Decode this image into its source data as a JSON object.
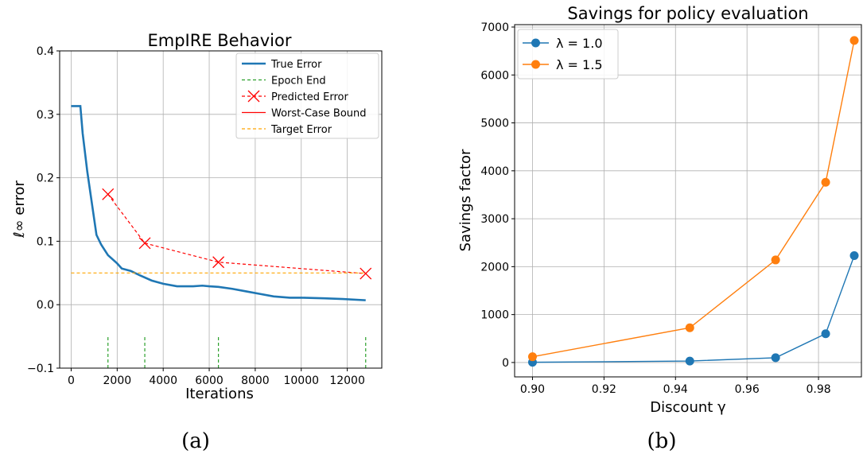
{
  "chart_data": [
    {
      "type": "line",
      "title": "EmpIRE Behavior",
      "xlabel": "Iterations",
      "ylabel": "ℓ∞ error",
      "xlim": [
        -500,
        13500
      ],
      "ylim": [
        -0.1,
        0.4
      ],
      "xticks": [
        0,
        2000,
        4000,
        6000,
        8000,
        10000,
        12000
      ],
      "yticks": [
        -0.1,
        0.0,
        0.1,
        0.2,
        0.3,
        0.4
      ],
      "xtick_labels": [
        "0",
        "2000",
        "4000",
        "6000",
        "8000",
        "10000",
        "12000"
      ],
      "ytick_labels": [
        "−0.1",
        "0.0",
        "0.1",
        "0.2",
        "0.3",
        "0.4"
      ],
      "grid": true,
      "legend_position": "top-right",
      "caption": "(a)",
      "legend": [
        "True Error",
        "Epoch End",
        "Predicted Error",
        "Worst-Case Bound",
        "Target Error"
      ],
      "series": [
        {
          "name": "True Error",
          "color": "#1f77b4",
          "style": "solid",
          "x": [
            0,
            400,
            500,
            700,
            900,
            1100,
            1300,
            1600,
            2000,
            2200,
            2600,
            3000,
            3500,
            4000,
            4600,
            5300,
            5700,
            6000,
            6400,
            7000,
            7600,
            8200,
            8800,
            9500,
            10000,
            11000,
            11800,
            12800
          ],
          "y": [
            0.313,
            0.313,
            0.27,
            0.21,
            0.16,
            0.11,
            0.095,
            0.078,
            0.065,
            0.057,
            0.053,
            0.046,
            0.038,
            0.033,
            0.029,
            0.029,
            0.03,
            0.029,
            0.028,
            0.025,
            0.021,
            0.017,
            0.013,
            0.011,
            0.011,
            0.01,
            0.009,
            0.007
          ]
        },
        {
          "name": "Epoch End",
          "color": "#2ca02c",
          "style": "dashed",
          "kind": "vlines",
          "x": [
            1600,
            3200,
            6400,
            12800
          ],
          "y_from": -0.1,
          "y_to": -0.05
        },
        {
          "name": "Predicted Error",
          "color": "#ff0000",
          "style": "dashed",
          "marker": "x",
          "x": [
            1600,
            3200,
            6400,
            12800
          ],
          "y": [
            0.174,
            0.097,
            0.067,
            0.049
          ]
        },
        {
          "name": "Worst-Case Bound",
          "color": "#ff0000",
          "style": "solid",
          "x": [],
          "y": []
        },
        {
          "name": "Target Error",
          "color": "#ffa500",
          "style": "dashed",
          "x": [
            0,
            12800
          ],
          "y": [
            0.05,
            0.05
          ]
        }
      ]
    },
    {
      "type": "line",
      "title": "Savings for policy evaluation",
      "xlabel": "Discount γ",
      "ylabel": "Savings factor",
      "xlim": [
        0.895,
        0.992
      ],
      "ylim": [
        -300,
        7050
      ],
      "xticks": [
        0.9,
        0.92,
        0.94,
        0.96,
        0.98
      ],
      "yticks": [
        0,
        1000,
        2000,
        3000,
        4000,
        5000,
        6000,
        7000
      ],
      "xtick_labels": [
        "0.90",
        "0.92",
        "0.94",
        "0.96",
        "0.98"
      ],
      "ytick_labels": [
        "0",
        "1000",
        "2000",
        "3000",
        "4000",
        "5000",
        "6000",
        "7000"
      ],
      "grid": true,
      "legend_position": "top-left",
      "caption": "(b)",
      "legend": [
        "λ = 1.0",
        "λ = 1.5"
      ],
      "series": [
        {
          "name": "λ = 1.0",
          "color": "#1f77b4",
          "marker": "o",
          "x": [
            0.9,
            0.944,
            0.968,
            0.982,
            0.99
          ],
          "y": [
            5,
            30,
            100,
            600,
            2230
          ]
        },
        {
          "name": "λ = 1.5",
          "color": "#ff7f0e",
          "marker": "o",
          "x": [
            0.9,
            0.944,
            0.968,
            0.982,
            0.99
          ],
          "y": [
            120,
            725,
            2140,
            3760,
            6720
          ]
        }
      ]
    }
  ]
}
